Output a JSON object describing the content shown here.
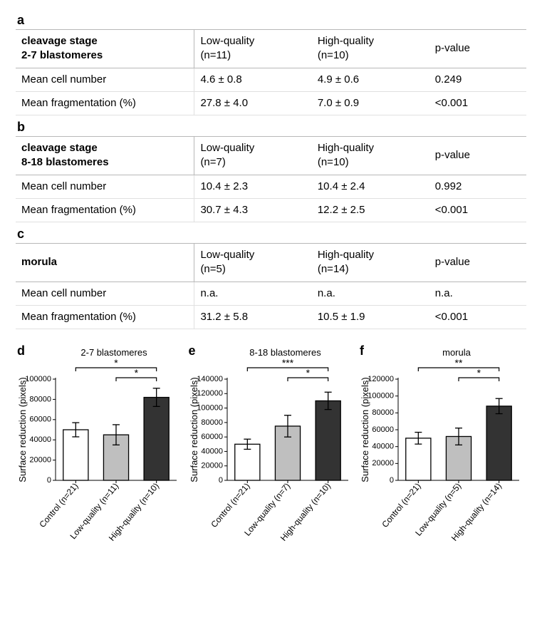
{
  "tables": [
    {
      "panel": "a",
      "title_line1": "cleavage stage",
      "title_line2": "2-7 blastomeres",
      "col_low": "Low-quality\n(n=11)",
      "col_high": "High-quality\n(n=10)",
      "col_p": "p-value",
      "rows": [
        {
          "label": "Mean cell number",
          "low": "4.6 ± 0.8",
          "high": "4.9 ± 0.6",
          "p": "0.249"
        },
        {
          "label": "Mean fragmentation (%)",
          "low": "27.8 ± 4.0",
          "high": "7.0 ± 0.9",
          "p": "<0.001"
        }
      ]
    },
    {
      "panel": "b",
      "title_line1": "cleavage stage",
      "title_line2": "8-18 blastomeres",
      "col_low": "Low-quality\n(n=7)",
      "col_high": "High-quality\n(n=10)",
      "col_p": "p-value",
      "rows": [
        {
          "label": "Mean cell number",
          "low": "10.4 ± 2.3",
          "high": "10.4 ± 2.4",
          "p": "0.992"
        },
        {
          "label": "Mean fragmentation (%)",
          "low": "30.7 ± 4.3",
          "high": "12.2 ± 2.5",
          "p": "<0.001"
        }
      ]
    },
    {
      "panel": "c",
      "title_line1": "morula",
      "title_line2": "",
      "col_low": "Low-quality\n(n=5)",
      "col_high": "High-quality\n(n=14)",
      "col_p": "p-value",
      "rows": [
        {
          "label": "Mean cell number",
          "low": "n.a.",
          "high": "n.a.",
          "p": "n.a."
        },
        {
          "label": "Mean fragmentation (%)",
          "low": "31.2 ± 5.8",
          "high": "10.5 ± 1.9",
          "p": "<0.001"
        }
      ]
    }
  ],
  "charts": [
    {
      "panel": "d",
      "title": "2-7 blastomeres",
      "ylabel": "Surface reduction (pixels)",
      "ylim": [
        0,
        100000
      ],
      "ytick_step": 20000,
      "categories": [
        "Control (n=21)",
        "Low-quality (n=11)",
        "High-quality (n=10)"
      ],
      "values": [
        50000,
        45000,
        82000
      ],
      "errors": [
        7000,
        10000,
        9000
      ],
      "bar_colors": [
        "#ffffff",
        "#bfbfbf",
        "#333333"
      ],
      "sig": [
        {
          "from": 0,
          "to": 2,
          "label": "*",
          "level": 2
        },
        {
          "from": 1,
          "to": 2,
          "label": "*",
          "level": 1
        }
      ]
    },
    {
      "panel": "e",
      "title": "8-18 blastomeres",
      "ylabel": "Surface reduction (pixels)",
      "ylim": [
        0,
        140000
      ],
      "ytick_step": 20000,
      "categories": [
        "Control (n=21)",
        "Low-quality (n=7)",
        "High-quality (n=10)"
      ],
      "values": [
        50000,
        75000,
        110000
      ],
      "errors": [
        7000,
        15000,
        12000
      ],
      "bar_colors": [
        "#ffffff",
        "#bfbfbf",
        "#333333"
      ],
      "sig": [
        {
          "from": 0,
          "to": 2,
          "label": "***",
          "level": 2
        },
        {
          "from": 1,
          "to": 2,
          "label": "*",
          "level": 1
        }
      ]
    },
    {
      "panel": "f",
      "title": "morula",
      "ylabel": "Surface reduction (pixels)",
      "ylim": [
        0,
        120000
      ],
      "ytick_step": 20000,
      "categories": [
        "Control (n=21)",
        "Low-quality (n=5)",
        "High-quality (n=14)"
      ],
      "values": [
        50000,
        52000,
        88000
      ],
      "errors": [
        7000,
        10000,
        9000
      ],
      "bar_colors": [
        "#ffffff",
        "#bfbfbf",
        "#333333"
      ],
      "sig": [
        {
          "from": 0,
          "to": 2,
          "label": "**",
          "level": 2
        },
        {
          "from": 1,
          "to": 2,
          "label": "*",
          "level": 1
        }
      ]
    }
  ],
  "style": {
    "font_family": "Arial",
    "table_border": "#b8b8b8",
    "row_border": "#e0e0e0",
    "axis_color": "#000000",
    "background": "#ffffff"
  }
}
